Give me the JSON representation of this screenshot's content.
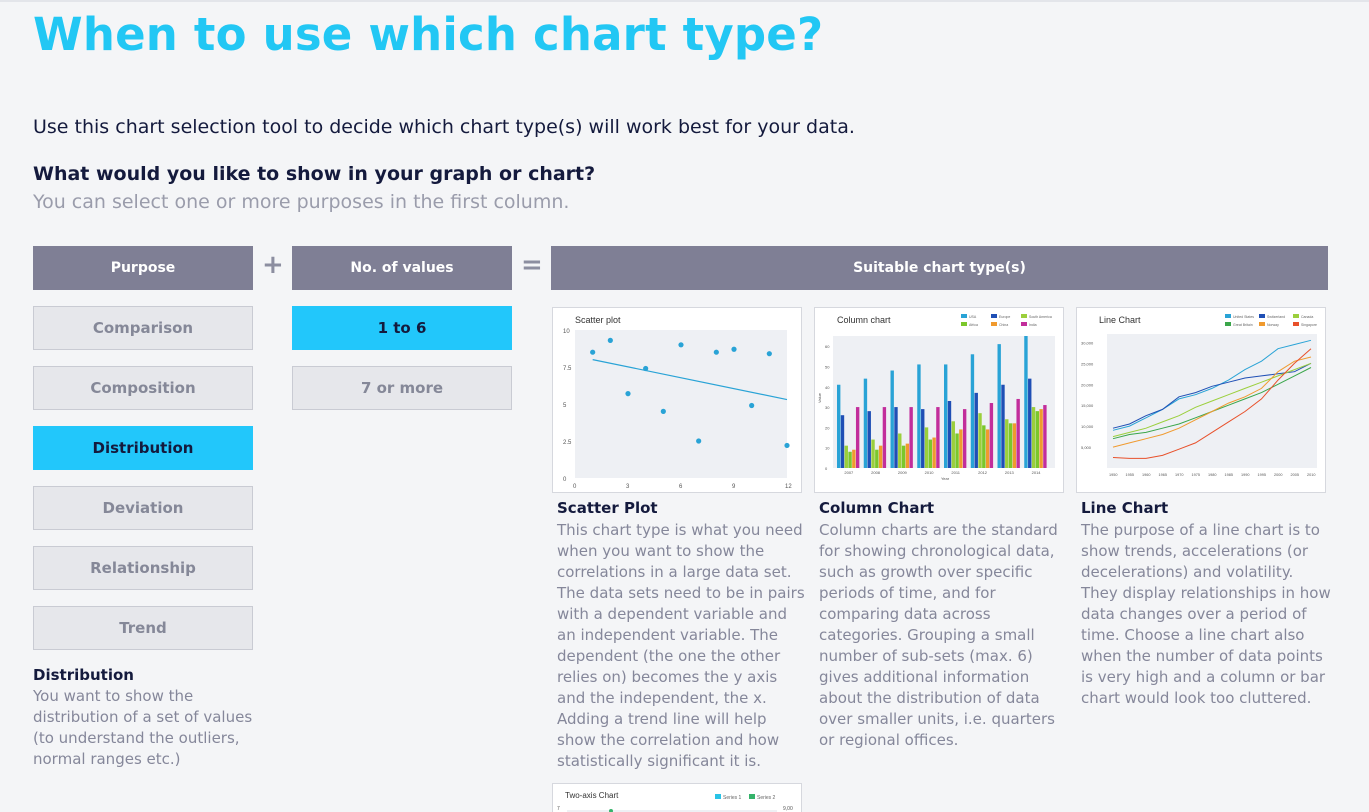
{
  "page": {
    "title": "When to use which chart type?",
    "intro": "Use this chart selection tool to decide which chart type(s) will work best for your data.",
    "question": "What would you like to show in your graph or chart?",
    "hint": "You can select one or more purposes in the first column."
  },
  "headers": {
    "purpose": "Purpose",
    "plus": "+",
    "values": "No. of values",
    "equals": "=",
    "suitable": "Suitable chart type(s)"
  },
  "purposes": [
    {
      "label": "Comparison",
      "active": false
    },
    {
      "label": "Composition",
      "active": false
    },
    {
      "label": "Distribution",
      "active": true
    },
    {
      "label": "Deviation",
      "active": false
    },
    {
      "label": "Relationship",
      "active": false
    },
    {
      "label": "Trend",
      "active": false
    }
  ],
  "value_options": [
    {
      "label": "1 to 6",
      "active": true
    },
    {
      "label": "7 or more",
      "active": false
    }
  ],
  "selected_description": {
    "title": "Distribution",
    "text": "You want to show the distribution of a set of values (to understand the outliers, normal ranges etc.)"
  },
  "charts": [
    {
      "title": "Scatter Plot",
      "thumb_title": "Scatter plot",
      "description": "This chart type is what you need when you want to show the correlations in a large data set. The data sets need to be in pairs with a dependent variable and an independent variable. The dependent (the one the other relies on) becomes the y axis and the independent, the x. Adding a trend line will help show the correlation and how statistically significant it is."
    },
    {
      "title": "Column Chart",
      "thumb_title": "Column chart",
      "description": "Column charts are the standard for showing chronological data, such as growth over specific periods of time, and for comparing data across categories. Grouping a small number of sub-sets (max. 6) gives additional information about the distribution of data over smaller units, i.e. quarters or regional offices."
    },
    {
      "title": "Line Chart",
      "thumb_title": "Line Chart",
      "description": "The purpose of a line chart is to show trends, accelerations (or decelerations) and volatility. They display relationships in how data changes over a period of time. Choose a line chart also when the number of data points is very high and a column or bar chart would look too cluttered."
    },
    {
      "title": "",
      "thumb_title": "Two-axis Chart",
      "description": ""
    }
  ],
  "thumbs": {
    "scatter": {
      "y_ticks": [
        "10",
        "7.5",
        "5",
        "2.5",
        "0"
      ],
      "x_ticks": [
        "0",
        "3",
        "6",
        "9",
        "12"
      ],
      "points": [
        [
          1,
          8.5
        ],
        [
          2,
          9.3
        ],
        [
          3,
          5.7
        ],
        [
          4,
          7.4
        ],
        [
          5,
          4.5
        ],
        [
          6,
          9
        ],
        [
          7,
          2.5
        ],
        [
          8,
          8.5
        ],
        [
          9,
          8.7
        ],
        [
          10,
          4.9
        ],
        [
          11,
          8.4
        ],
        [
          12,
          2.2
        ]
      ],
      "trend": [
        [
          1,
          8
        ],
        [
          12,
          5.3
        ]
      ]
    },
    "column": {
      "legend": [
        "USA",
        "Europe",
        "South America",
        "Africa",
        "China",
        "India"
      ],
      "colors": [
        "#29a3d6",
        "#1f4fb5",
        "#9bcf3c",
        "#7bc72b",
        "#f09a2e",
        "#c22e9b"
      ],
      "years": [
        "2007",
        "2008",
        "2009",
        "2010",
        "2011",
        "2012",
        "2013",
        "2014"
      ],
      "y_ticks": [
        "60",
        "50",
        "40",
        "30",
        "20",
        "10",
        "0"
      ],
      "ylabel": "Value",
      "xlabel": "Year"
    },
    "line": {
      "legend": [
        "United States",
        "Switzerland",
        "Canada",
        "Great Britain",
        "Norway",
        "Singapore"
      ],
      "colors": [
        "#29a3d6",
        "#1f4fb5",
        "#9bcf3c",
        "#3aa64a",
        "#f09a2e",
        "#e8502a"
      ],
      "y_ticks": [
        "30,000",
        "25,000",
        "20,000",
        "15,000",
        "10,000",
        "5,000"
      ],
      "x_ticks": [
        "1950",
        "1955",
        "1960",
        "1965",
        "1970",
        "1975",
        "1980",
        "1985",
        "1990",
        "1995",
        "2000",
        "2005",
        "2010"
      ]
    },
    "two_axis": {
      "legend": [
        "Series 1",
        "Series 2"
      ],
      "colors": [
        "#29c3e6",
        "#35b36a"
      ],
      "left_tick": "7",
      "right_tick": "9,00"
    }
  }
}
